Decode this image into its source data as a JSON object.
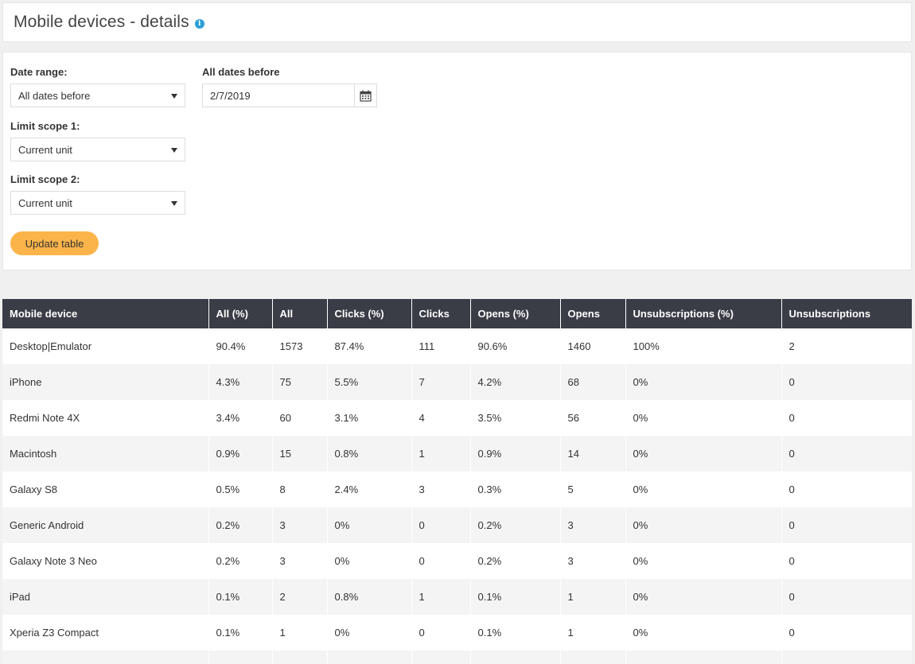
{
  "header": {
    "title": "Mobile devices - details",
    "info_icon": "info-circle-icon"
  },
  "filters": {
    "date_range": {
      "label": "Date range:",
      "value": "All dates before"
    },
    "date_before": {
      "label": "All dates before",
      "value": "2/7/2019",
      "icon": "calendar-icon"
    },
    "scope1": {
      "label": "Limit scope 1:",
      "value": "Current unit"
    },
    "scope2": {
      "label": "Limit scope 2:",
      "value": "Current unit"
    },
    "update_label": "Update table"
  },
  "colors": {
    "accent": "#fbb44a",
    "table_header": "#3a3d46",
    "info": "#2a9fd6"
  },
  "table": {
    "columns": [
      "Mobile device",
      "All (%)",
      "All",
      "Clicks (%)",
      "Clicks",
      "Opens (%)",
      "Opens",
      "Unsubscriptions (%)",
      "Unsubscriptions"
    ],
    "rows": [
      [
        "Desktop|Emulator",
        "90.4%",
        "1573",
        "87.4%",
        "111",
        "90.6%",
        "1460",
        "100%",
        "2"
      ],
      [
        "iPhone",
        "4.3%",
        "75",
        "5.5%",
        "7",
        "4.2%",
        "68",
        "0%",
        "0"
      ],
      [
        "Redmi Note 4X",
        "3.4%",
        "60",
        "3.1%",
        "4",
        "3.5%",
        "56",
        "0%",
        "0"
      ],
      [
        "Macintosh",
        "0.9%",
        "15",
        "0.8%",
        "1",
        "0.9%",
        "14",
        "0%",
        "0"
      ],
      [
        "Galaxy S8",
        "0.5%",
        "8",
        "2.4%",
        "3",
        "0.3%",
        "5",
        "0%",
        "0"
      ],
      [
        "Generic Android",
        "0.2%",
        "3",
        "0%",
        "0",
        "0.2%",
        "3",
        "0%",
        "0"
      ],
      [
        "Galaxy Note 3 Neo",
        "0.2%",
        "3",
        "0%",
        "0",
        "0.2%",
        "3",
        "0%",
        "0"
      ],
      [
        "iPad",
        "0.1%",
        "2",
        "0.8%",
        "1",
        "0.1%",
        "1",
        "0%",
        "0"
      ],
      [
        "Xperia Z3 Compact",
        "0.1%",
        "1",
        "0%",
        "0",
        "0.1%",
        "1",
        "0%",
        "0"
      ]
    ]
  }
}
